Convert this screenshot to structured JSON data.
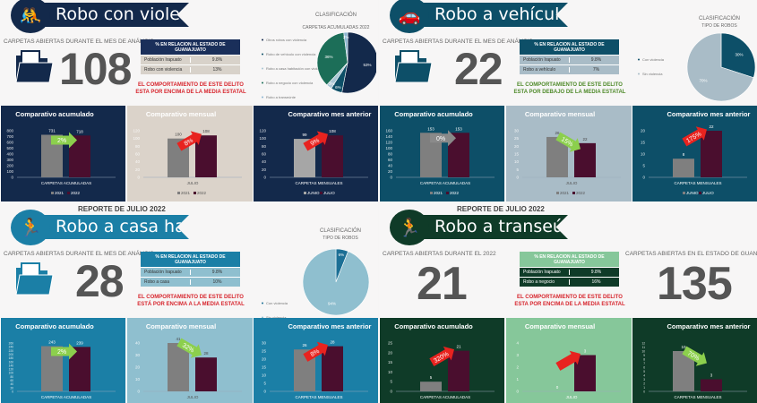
{
  "quadrants": [
    {
      "id": "robo-con-violencia",
      "title": "Robo con violencia",
      "icon": "fighting-people-icon",
      "carpetas_label": "CARPETAS ABIERTAS DURANTE EL MES DE ANÁLISIS",
      "number": "108",
      "table": {
        "header": "% EN RELACION AL ESTADO DE GUANAJUATO",
        "rows": [
          [
            "Población Irapuato",
            "9.8%"
          ],
          [
            "Robo con violencia",
            "13%"
          ]
        ]
      },
      "message": "EL COMPORTAMIENTO DE ESTE DELITO ESTA POR ENCIMA DE LA MEDIA ESTATAL",
      "message_color": "#d7262e",
      "colors": {
        "banner": "#13294b",
        "panel": "#13294b",
        "panel_mid": "#dbd3ca",
        "th": "#1a2f5a",
        "rows": "#d8d2ca",
        "row_text": "#333",
        "bar_a2": "#a6a6a6"
      },
      "pie": {
        "title": "CLASIFICACIÓN",
        "subtitle": "CARPETAS ACUMULADAS 2022",
        "slices": [
          {
            "label": "Otros robos con violencia",
            "value": 53,
            "pct": "53%",
            "color": "#13294b"
          },
          {
            "label": "Robo de vehículo con violencia",
            "value": 6,
            "pct": "6%",
            "color": "#0e5068"
          },
          {
            "label": "Robo a casa habitación con violencia",
            "value": 3,
            "pct": "3%",
            "color": "#a9c6d4"
          },
          {
            "label": "Robo a negocio con violencia",
            "value": 36,
            "pct": "36%",
            "color": "#1c6e58"
          },
          {
            "label": "Robo a transeúnte",
            "value": 2,
            "pct": "2%",
            "color": "#8ab4d0"
          }
        ]
      },
      "charts": [
        {
          "title": "Comparativo acumulado",
          "ylim": [
            0,
            800
          ],
          "step": 100,
          "values": [
            731,
            718
          ],
          "labels": [
            "731",
            "718"
          ],
          "change": "2%",
          "change_color": "#8ccf4d",
          "dir": "right",
          "xlabel": "CARPETAS ACUMULADAS",
          "legend": [
            "2021",
            "2022"
          ]
        },
        {
          "title": "Comparativo mensual",
          "ylim": [
            0,
            120
          ],
          "step": 20,
          "values": [
            100,
            108
          ],
          "labels": [
            "100",
            "108"
          ],
          "change": "8%",
          "change_color": "#e8231f",
          "dir": "up",
          "xlabel": "JULIO",
          "legend": [
            "2021",
            "2022"
          ]
        },
        {
          "title": "Comparativo mes anterior",
          "ylim": [
            0,
            120
          ],
          "step": 20,
          "values": [
            99,
            108
          ],
          "labels": [
            "99",
            "108"
          ],
          "change": "9%",
          "change_color": "#e8231f",
          "dir": "up",
          "xlabel": "CARPETAS MENSUALES",
          "legend": [
            "JUNIO",
            "JULIO"
          ]
        }
      ]
    },
    {
      "id": "robo-a-vehiculo",
      "title": "Robo a vehículo",
      "icon": "car-thief-icon",
      "carpetas_label": "CARPETAS ABIERTAS DURANTE EL MES DE ANÁLISIS",
      "number": "22",
      "table": {
        "header": "% EN RELACION AL ESTADO DE GUANAJUATO",
        "rows": [
          [
            "Población Irapuato",
            "9.8%"
          ],
          [
            "Robo a vehículo",
            "7%"
          ]
        ]
      },
      "message": "EL COMPORTAMIENTO DE ESTE DELITO ESTA POR DEBAJO DE LA MEDIA ESTATAL",
      "message_color": "#4f8a2a",
      "colors": {
        "banner": "#0d4f68",
        "panel": "#0d4f68",
        "panel_mid": "#a9bcc7",
        "th": "#0d4f68",
        "rows": "#a9bcc7",
        "row_text": "#333",
        "bar_a2": "#7f7f7f"
      },
      "pie": {
        "title": "CLASIFICACIÓN",
        "subtitle": "TIPO DE ROBOS",
        "slices": [
          {
            "label": "Con violencia",
            "value": 30,
            "pct": "30%",
            "color": "#0d4f68"
          },
          {
            "label": "Sin violencia",
            "value": 70,
            "pct": "70%",
            "color": "#a9bcc7"
          }
        ]
      },
      "charts": [
        {
          "title": "Comparativo acumulado",
          "ylim": [
            0,
            160
          ],
          "step": 20,
          "values": [
            153,
            153
          ],
          "labels": [
            "153",
            "153"
          ],
          "change": "0%",
          "change_color": "#8a8a8a",
          "dir": "right",
          "xlabel": "CARPETAS ACUMULADAS",
          "legend": [
            "2021",
            "2022"
          ]
        },
        {
          "title": "Comparativo mensual",
          "ylim": [
            0,
            30
          ],
          "step": 5,
          "values": [
            26,
            22
          ],
          "labels": [
            "26",
            "22"
          ],
          "change": "15%",
          "change_color": "#8ccf4d",
          "dir": "down",
          "xlabel": "JULIO",
          "legend": [
            "2021",
            "2022"
          ]
        },
        {
          "title": "Comparativo mes anterior",
          "ylim": [
            0,
            20
          ],
          "step": 5,
          "values": [
            8,
            22
          ],
          "labels": [
            "8",
            "22"
          ],
          "change": "175%",
          "change_color": "#e8231f",
          "dir": "up",
          "xlabel": "CARPETAS MENSUALES",
          "legend": [
            "JUNIO",
            "JULIO"
          ]
        }
      ]
    },
    {
      "id": "robo-a-casa-habitacion",
      "title": "Robo a casa habitación",
      "icon": "burglar-icon",
      "report": "REPORTE DE  JULIO 2022",
      "carpetas_label": "CARPETAS ABIERTAS DURANTE EL MES DE ANÁLISIS",
      "number": "28",
      "table": {
        "header": "% EN RELACION AL ESTADO DE GUANAJUATO",
        "rows": [
          [
            "Población Irapuato",
            "9.8%"
          ],
          [
            "Robo a casa",
            "10%"
          ]
        ]
      },
      "message": "EL COMPORTAMIENTO DE ESTE DELITO ESTÁ POR ENCIMA A LA MEDIA ESTATAL",
      "message_color": "#d7262e",
      "colors": {
        "banner": "#1b7fa6",
        "panel": "#1b7fa6",
        "panel_mid": "#8fbfcf",
        "th": "#1b7fa6",
        "rows": "#8fbfcf",
        "row_text": "#333",
        "bar_a2": "#7f7f7f"
      },
      "pie": {
        "title": "CLASIFICACIÓN",
        "subtitle": "TIPO DE ROBOS",
        "slices": [
          {
            "label": "Con violencia",
            "value": 6,
            "pct": "6%",
            "color": "#1b6f95"
          },
          {
            "label": "Sin violencia",
            "value": 94,
            "pct": "94%",
            "color": "#8fbfcf"
          }
        ]
      },
      "charts": [
        {
          "title": "Comparativo acumulado",
          "ylim": [
            0,
            260
          ],
          "step": 20,
          "values": [
            243,
            239
          ],
          "labels": [
            "243",
            "239"
          ],
          "change": "2%",
          "change_color": "#8ccf4d",
          "dir": "right",
          "xlabel": "CARPETAS ACUMULADAS"
        },
        {
          "title": "Comparativo mensual",
          "ylim": [
            0,
            40
          ],
          "step": 10,
          "values": [
            41,
            28
          ],
          "labels": [
            "41",
            "28"
          ],
          "change": "32%",
          "change_color": "#8ccf4d",
          "dir": "down",
          "xlabel": "JULIO"
        },
        {
          "title": "Comparativo mes anterior",
          "ylim": [
            0,
            30
          ],
          "step": 5,
          "values": [
            26,
            28
          ],
          "labels": [
            "26",
            "28"
          ],
          "change": "8%",
          "change_color": "#e8231f",
          "dir": "up",
          "xlabel": "CARPETAS MENSUALES"
        }
      ]
    },
    {
      "id": "robo-a-transeunte",
      "title": "Robo a transeúnte",
      "icon": "running-thief-icon",
      "report": "REPORTE DE  JULIO 2022",
      "carpetas_label": "CARPETAS ABIERTAS DURANTE EL 2022",
      "number": "21",
      "carpetas_label_2": "CARPETAS ABIERTAS EN EL ESTADO DE GUANAJUATO",
      "number_2": "135",
      "table": {
        "header": "% EN RELACION AL ESTADO DE GUANAJUATO",
        "rows": [
          [
            "Población Irapuato",
            "9.8%"
          ],
          [
            "Robo a negocio",
            "16%"
          ]
        ]
      },
      "message": "EL COMPORTAMIENTO DE ESTE DELITO ESTA POR ENCIMA DE LA MEDIA ESTATAL",
      "message_color": "#d7262e",
      "colors": {
        "banner": "#0f3b28",
        "panel": "#0f3b28",
        "panel_mid": "#86c79a",
        "th": "#86c79a",
        "rows": "#0f3b28",
        "row_text": "#fff",
        "bar_a2": "#7f7f7f"
      },
      "charts": [
        {
          "title": "Comparativo acumulado",
          "ylim": [
            0,
            25
          ],
          "step": 5,
          "values": [
            5,
            21
          ],
          "labels": [
            "5",
            "21"
          ],
          "change": "320%",
          "change_color": "#e8231f",
          "dir": "up",
          "xlabel": "CARPETAS ACUMULADAS"
        },
        {
          "title": "Comparativo mensual",
          "ylim": [
            0,
            4
          ],
          "step": 1,
          "values": [
            0,
            3
          ],
          "labels": [
            "0",
            "3"
          ],
          "change": "",
          "change_color": "#e8231f",
          "dir": "up",
          "xlabel": "JULIO"
        },
        {
          "title": "Comparativo mes anterior",
          "ylim": [
            0,
            12
          ],
          "step": 1,
          "values": [
            10,
            3
          ],
          "labels": [
            "10",
            "3"
          ],
          "change": "70%",
          "change_color": "#8ccf4d",
          "dir": "down",
          "xlabel": "CARPETAS MENSUALES"
        }
      ]
    }
  ],
  "bar_colors": {
    "previous": "#7f7f7f",
    "current": "#4a0e2e"
  }
}
